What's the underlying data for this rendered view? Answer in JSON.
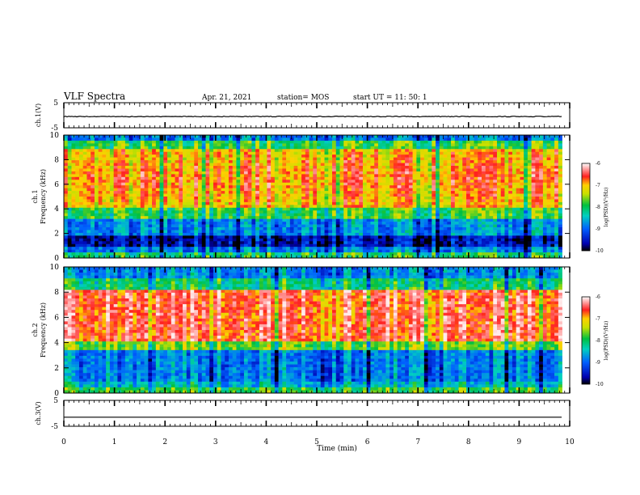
{
  "header": {
    "title": "VLF Spectra",
    "date": "Apr. 21, 2021",
    "station": "station= MOS",
    "start_ut": "start  UT =   11: 50: 1"
  },
  "chart_data": [
    {
      "type": "line",
      "panel": "ch1-waveform",
      "ylabel": "ch.1(V)",
      "ylim": [
        -5,
        5
      ],
      "yticks": [
        "5",
        "-5"
      ],
      "xlim": [
        0,
        10
      ],
      "description_values": "near-constant trace slightly below 0 V",
      "y_level": -0.5
    },
    {
      "type": "heatmap",
      "panel": "ch1-spectrogram",
      "ylabel": "ch.1\nFrequency (kHz)",
      "ylabel_lines": [
        "ch.1",
        "Frequency (kHz)"
      ],
      "ylim": [
        0,
        10
      ],
      "yticks": [
        "0",
        "2",
        "4",
        "6",
        "8",
        "10"
      ],
      "xlim": [
        0,
        9.85
      ],
      "colorbar": {
        "label": "log(PSD)(V²/Hz)",
        "range": [
          -10,
          -6
        ],
        "ticks": [
          "-6",
          "-7",
          "-8",
          "-9",
          "-10"
        ]
      }
    },
    {
      "type": "heatmap",
      "panel": "ch2-spectrogram",
      "ylabel_lines": [
        "ch.2",
        "Frequency (kHz)"
      ],
      "ylim": [
        0,
        10
      ],
      "yticks": [
        "0",
        "2",
        "4",
        "6",
        "8",
        "10"
      ],
      "xlim": [
        0,
        9.85
      ],
      "colorbar": {
        "label": "log(PSD)(V²/Hz)",
        "range": [
          -10,
          -6
        ],
        "ticks": [
          "-6",
          "-7",
          "-8",
          "-9",
          "-10"
        ]
      }
    },
    {
      "type": "line",
      "panel": "ch3-waveform",
      "ylabel": "ch.3(V)",
      "ylim": [
        -5,
        5
      ],
      "yticks": [
        "5",
        "-5"
      ],
      "xlim": [
        0,
        10
      ],
      "y_level": -1.5
    }
  ],
  "xaxis": {
    "label": "Time (min)",
    "ticks": [
      "0",
      "1",
      "2",
      "3",
      "4",
      "5",
      "6",
      "7",
      "8",
      "9",
      "10"
    ],
    "range": [
      0,
      10
    ]
  },
  "colors": {
    "low": "#00007f",
    "mid": "#00c8a0",
    "high": "#ff2020"
  }
}
